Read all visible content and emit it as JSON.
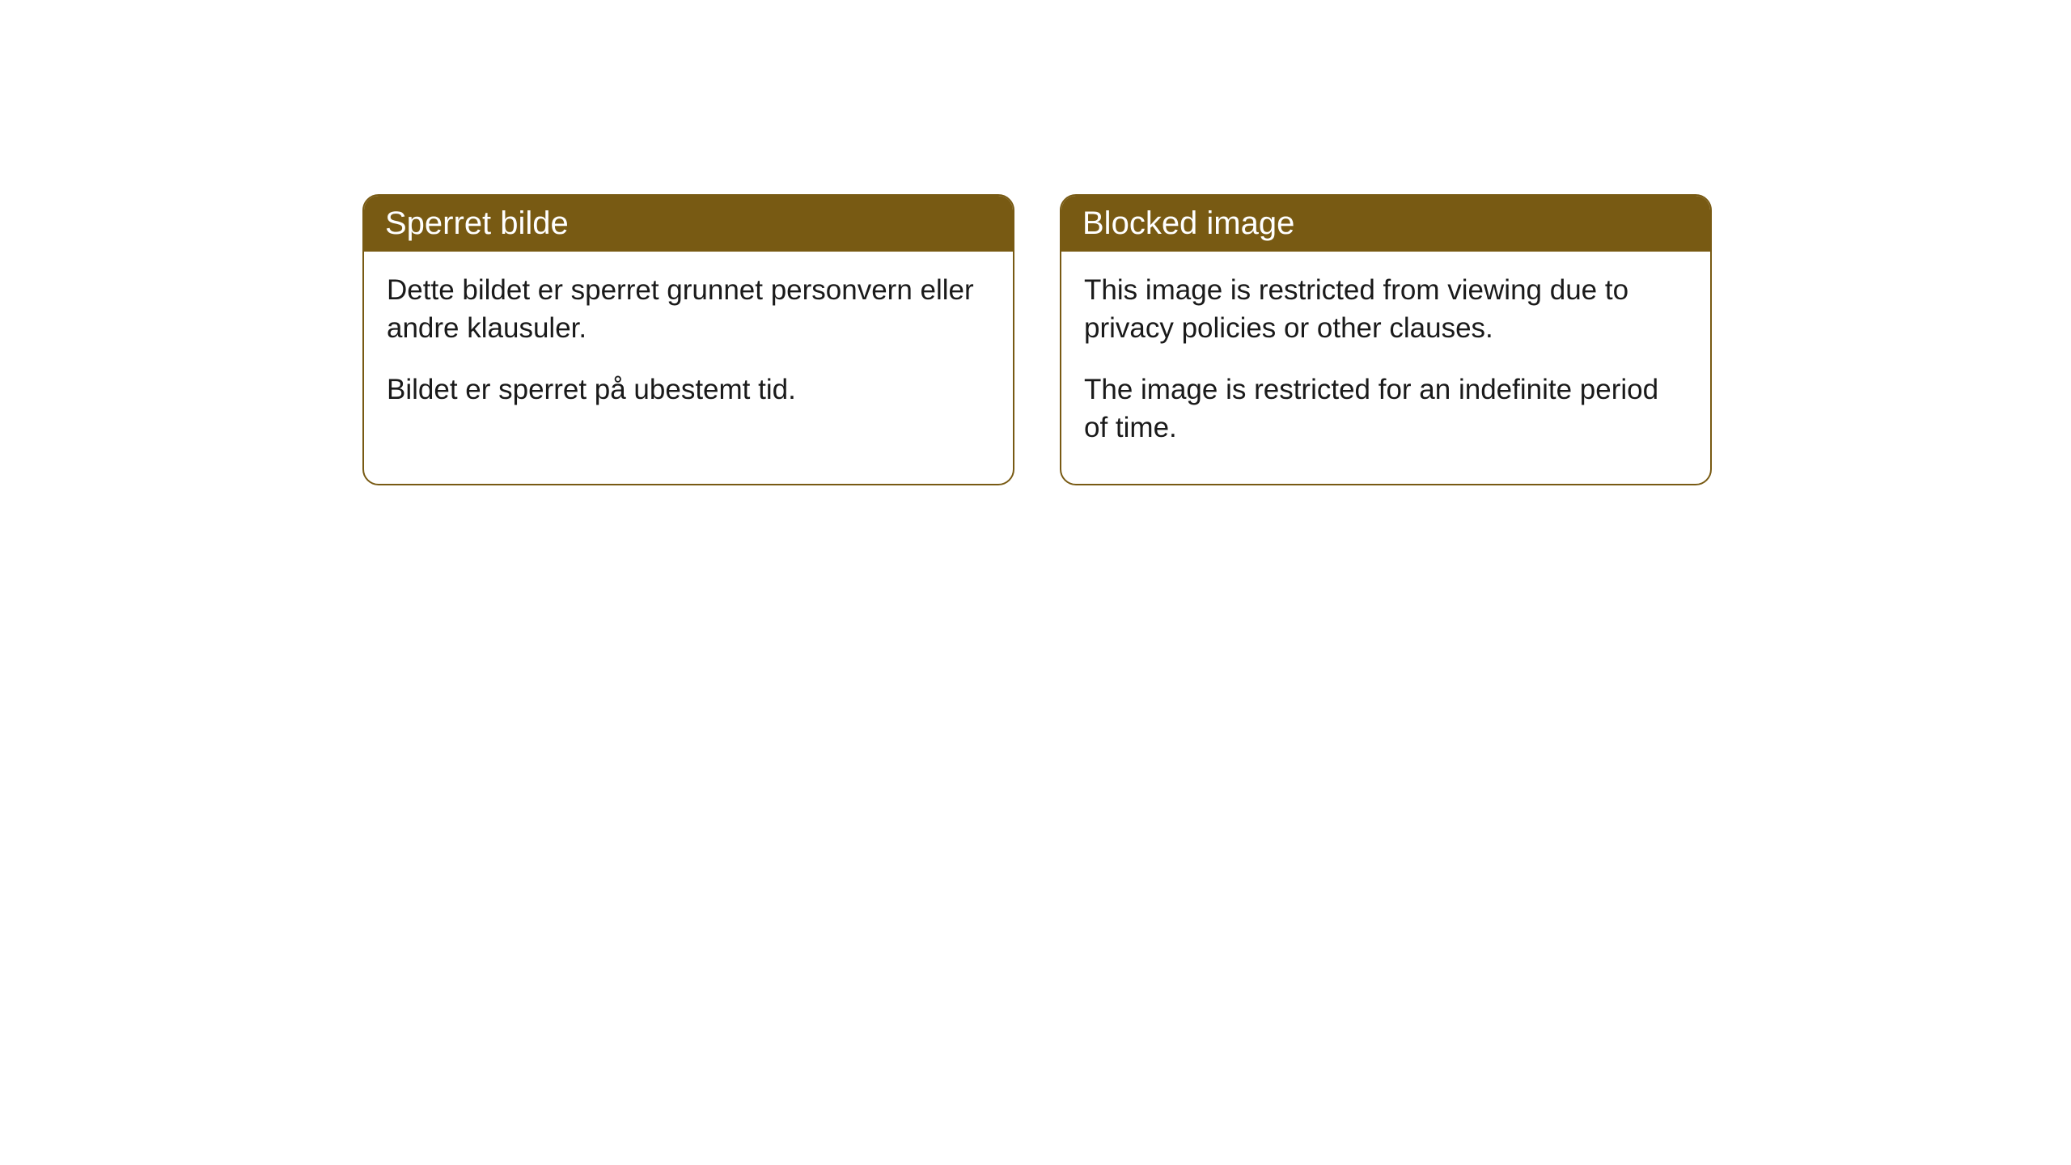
{
  "cards": [
    {
      "title": "Sperret bilde",
      "paragraph1": "Dette bildet er sperret grunnet personvern eller andre klausuler.",
      "paragraph2": "Bildet er sperret på ubestemt tid."
    },
    {
      "title": "Blocked image",
      "paragraph1": "This image is restricted from viewing due to privacy policies or other clauses.",
      "paragraph2": "The image is restricted for an indefinite period of time."
    }
  ],
  "styling": {
    "header_background_color": "#785a13",
    "header_text_color": "#ffffff",
    "border_color": "#785a13",
    "body_text_color": "#1a1a1a",
    "card_background_color": "#ffffff",
    "page_background_color": "#ffffff",
    "border_radius": 20,
    "header_fontsize": 40,
    "body_fontsize": 35
  }
}
